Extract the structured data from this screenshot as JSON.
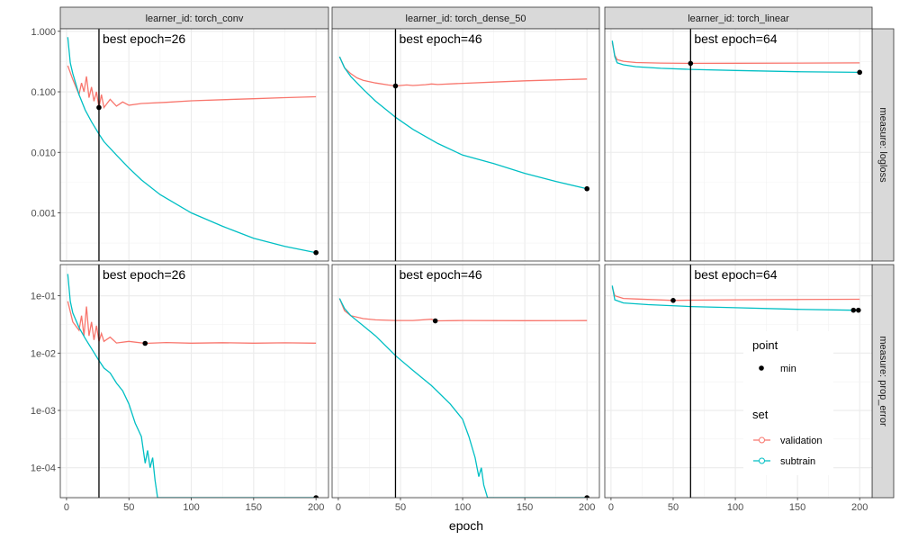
{
  "chart_data": {
    "type": "line",
    "xlabel": "epoch",
    "x_ticks": [
      0,
      50,
      100,
      150,
      200
    ],
    "x_range": [
      -5,
      210
    ],
    "columns": [
      {
        "learner_id": "torch_conv",
        "strip": "learner_id: torch_conv",
        "best_epoch": 26,
        "best_label": "best epoch=26"
      },
      {
        "learner_id": "torch_dense_50",
        "strip": "learner_id: torch_dense_50",
        "best_epoch": 46,
        "best_label": "best epoch=46"
      },
      {
        "learner_id": "torch_linear",
        "strip": "learner_id: torch_linear",
        "best_epoch": 64,
        "best_label": "best epoch=64"
      }
    ],
    "rows": [
      {
        "measure": "logloss",
        "strip": "measure: logloss",
        "scale": "log10",
        "ylim": [
          0.00016,
          1.1
        ],
        "ticks": [
          0.001,
          0.01,
          0.1,
          1
        ],
        "tick_labels": [
          "0.001",
          "0.010",
          "0.100",
          "1.000"
        ]
      },
      {
        "measure": "prop_error",
        "strip": "measure: prop_error",
        "scale": "log10",
        "ylim": [
          3e-05,
          0.35
        ],
        "ticks": [
          0.0001,
          0.001,
          0.01,
          0.1
        ],
        "tick_labels": [
          "1e-04",
          "1e-03",
          "1e-02",
          "1e-01"
        ]
      }
    ],
    "panels": [
      {
        "row": "logloss",
        "column": "torch_conv",
        "series": [
          {
            "set": "validation",
            "points": [
              [
                1,
                0.27
              ],
              [
                5,
                0.16
              ],
              [
                10,
                0.09
              ],
              [
                12,
                0.14
              ],
              [
                14,
                0.1
              ],
              [
                16,
                0.18
              ],
              [
                18,
                0.08
              ],
              [
                20,
                0.12
              ],
              [
                22,
                0.07
              ],
              [
                24,
                0.1
              ],
              [
                26,
                0.055
              ],
              [
                28,
                0.09
              ],
              [
                30,
                0.055
              ],
              [
                35,
                0.075
              ],
              [
                40,
                0.058
              ],
              [
                45,
                0.068
              ],
              [
                50,
                0.06
              ],
              [
                60,
                0.064
              ],
              [
                80,
                0.067
              ],
              [
                100,
                0.071
              ],
              [
                125,
                0.074
              ],
              [
                150,
                0.077
              ],
              [
                175,
                0.08
              ],
              [
                200,
                0.083
              ]
            ]
          },
          {
            "set": "subtrain",
            "points": [
              [
                1,
                0.8
              ],
              [
                3,
                0.3
              ],
              [
                5,
                0.2
              ],
              [
                10,
                0.09
              ],
              [
                15,
                0.05
              ],
              [
                20,
                0.032
              ],
              [
                26,
                0.02
              ],
              [
                30,
                0.015
              ],
              [
                40,
                0.009
              ],
              [
                50,
                0.0055
              ],
              [
                60,
                0.0035
              ],
              [
                75,
                0.002
              ],
              [
                100,
                0.001
              ],
              [
                125,
                0.0006
              ],
              [
                150,
                0.00038
              ],
              [
                175,
                0.00028
              ],
              [
                200,
                0.00022
              ]
            ]
          }
        ],
        "min_points": [
          [
            26,
            0.055
          ],
          [
            200,
            0.00022
          ]
        ]
      },
      {
        "row": "logloss",
        "column": "torch_dense_50",
        "series": [
          {
            "set": "validation",
            "points": [
              [
                1,
                0.38
              ],
              [
                5,
                0.25
              ],
              [
                10,
                0.2
              ],
              [
                15,
                0.17
              ],
              [
                20,
                0.155
              ],
              [
                30,
                0.14
              ],
              [
                40,
                0.13
              ],
              [
                46,
                0.125
              ],
              [
                55,
                0.13
              ],
              [
                60,
                0.127
              ],
              [
                70,
                0.131
              ],
              [
                75,
                0.135
              ],
              [
                80,
                0.132
              ],
              [
                100,
                0.138
              ],
              [
                125,
                0.145
              ],
              [
                150,
                0.152
              ],
              [
                175,
                0.157
              ],
              [
                200,
                0.163
              ]
            ]
          },
          {
            "set": "subtrain",
            "points": [
              [
                1,
                0.38
              ],
              [
                5,
                0.25
              ],
              [
                10,
                0.18
              ],
              [
                20,
                0.11
              ],
              [
                30,
                0.07
              ],
              [
                46,
                0.038
              ],
              [
                60,
                0.024
              ],
              [
                80,
                0.014
              ],
              [
                100,
                0.009
              ],
              [
                125,
                0.0065
              ],
              [
                150,
                0.0045
              ],
              [
                175,
                0.0033
              ],
              [
                200,
                0.0025
              ]
            ]
          }
        ],
        "min_points": [
          [
            46,
            0.125
          ],
          [
            200,
            0.0025
          ]
        ]
      },
      {
        "row": "logloss",
        "column": "torch_linear",
        "series": [
          {
            "set": "validation",
            "points": [
              [
                1,
                0.65
              ],
              [
                3,
                0.4
              ],
              [
                5,
                0.34
              ],
              [
                10,
                0.32
              ],
              [
                20,
                0.305
              ],
              [
                40,
                0.298
              ],
              [
                64,
                0.295
              ],
              [
                100,
                0.296
              ],
              [
                150,
                0.298
              ],
              [
                200,
                0.3
              ]
            ]
          },
          {
            "set": "subtrain",
            "points": [
              [
                1,
                0.7
              ],
              [
                3,
                0.38
              ],
              [
                5,
                0.3
              ],
              [
                10,
                0.28
              ],
              [
                20,
                0.26
              ],
              [
                40,
                0.245
              ],
              [
                64,
                0.235
              ],
              [
                100,
                0.225
              ],
              [
                150,
                0.215
              ],
              [
                200,
                0.21
              ]
            ]
          }
        ],
        "min_points": [
          [
            64,
            0.295
          ],
          [
            200,
            0.21
          ]
        ]
      },
      {
        "row": "prop_error",
        "column": "torch_conv",
        "series": [
          {
            "set": "validation",
            "points": [
              [
                1,
                0.08
              ],
              [
                5,
                0.035
              ],
              [
                10,
                0.025
              ],
              [
                12,
                0.045
              ],
              [
                14,
                0.02
              ],
              [
                16,
                0.065
              ],
              [
                18,
                0.02
              ],
              [
                20,
                0.035
              ],
              [
                22,
                0.017
              ],
              [
                24,
                0.03
              ],
              [
                26,
                0.016
              ],
              [
                28,
                0.022
              ],
              [
                30,
                0.016
              ],
              [
                35,
                0.019
              ],
              [
                40,
                0.015
              ],
              [
                50,
                0.016
              ],
              [
                63,
                0.0148
              ],
              [
                80,
                0.0153
              ],
              [
                100,
                0.0149
              ],
              [
                125,
                0.0152
              ],
              [
                150,
                0.0149
              ],
              [
                175,
                0.0151
              ],
              [
                200,
                0.0149
              ]
            ]
          },
          {
            "set": "subtrain",
            "points": [
              [
                1,
                0.24
              ],
              [
                3,
                0.08
              ],
              [
                5,
                0.05
              ],
              [
                10,
                0.028
              ],
              [
                15,
                0.018
              ],
              [
                20,
                0.012
              ],
              [
                25,
                0.008
              ],
              [
                30,
                0.0055
              ],
              [
                35,
                0.0045
              ],
              [
                40,
                0.003
              ],
              [
                45,
                0.0022
              ],
              [
                50,
                0.0013
              ],
              [
                55,
                0.0006
              ],
              [
                60,
                0.00035
              ],
              [
                63,
                0.00012
              ],
              [
                65,
                0.0002
              ],
              [
                67,
                0.0001
              ],
              [
                69,
                0.00015
              ],
              [
                71,
                6e-05
              ],
              [
                73,
                3e-05
              ],
              [
                200,
                3e-05
              ]
            ]
          }
        ],
        "min_points": [
          [
            63,
            0.0148
          ],
          [
            200,
            3e-05
          ]
        ]
      },
      {
        "row": "prop_error",
        "column": "torch_dense_50",
        "series": [
          {
            "set": "validation",
            "points": [
              [
                1,
                0.09
              ],
              [
                5,
                0.055
              ],
              [
                10,
                0.045
              ],
              [
                20,
                0.04
              ],
              [
                30,
                0.038
              ],
              [
                46,
                0.037
              ],
              [
                60,
                0.037
              ],
              [
                75,
                0.039
              ],
              [
                78,
                0.0365
              ],
              [
                100,
                0.037
              ],
              [
                150,
                0.0368
              ],
              [
                200,
                0.0369
              ]
            ]
          },
          {
            "set": "subtrain",
            "points": [
              [
                1,
                0.09
              ],
              [
                5,
                0.06
              ],
              [
                10,
                0.045
              ],
              [
                20,
                0.03
              ],
              [
                30,
                0.02
              ],
              [
                46,
                0.009
              ],
              [
                60,
                0.005
              ],
              [
                75,
                0.0027
              ],
              [
                90,
                0.0013
              ],
              [
                100,
                0.0007
              ],
              [
                105,
                0.00035
              ],
              [
                110,
                0.00015
              ],
              [
                113,
                7e-05
              ],
              [
                115,
                0.0001
              ],
              [
                117,
                5e-05
              ],
              [
                120,
                3e-05
              ],
              [
                200,
                3e-05
              ]
            ]
          }
        ],
        "min_points": [
          [
            78,
            0.0365
          ],
          [
            200,
            3e-05
          ]
        ]
      },
      {
        "row": "prop_error",
        "column": "torch_linear",
        "series": [
          {
            "set": "validation",
            "points": [
              [
                1,
                0.14
              ],
              [
                3,
                0.1
              ],
              [
                10,
                0.09
              ],
              [
                20,
                0.088
              ],
              [
                50,
                0.083
              ],
              [
                64,
                0.084
              ],
              [
                100,
                0.085
              ],
              [
                150,
                0.086
              ],
              [
                200,
                0.087
              ]
            ]
          },
          {
            "set": "subtrain",
            "points": [
              [
                1,
                0.15
              ],
              [
                3,
                0.085
              ],
              [
                10,
                0.075
              ],
              [
                30,
                0.07
              ],
              [
                64,
                0.065
              ],
              [
                100,
                0.062
              ],
              [
                150,
                0.058
              ],
              [
                195,
                0.056
              ],
              [
                200,
                0.056
              ]
            ]
          }
        ],
        "min_points": [
          [
            50,
            0.083
          ],
          [
            195,
            0.056
          ],
          [
            199,
            0.056
          ]
        ]
      }
    ],
    "legend": {
      "position": "bottom-right",
      "point_title": "point",
      "point_items": [
        {
          "label": "min",
          "color": "#000000"
        }
      ],
      "set_title": "set",
      "set_items": [
        {
          "label": "validation",
          "color": "#F8766D"
        },
        {
          "label": "subtrain",
          "color": "#00BFC4"
        }
      ]
    },
    "colors": {
      "validation": "#F8766D",
      "subtrain": "#00BFC4",
      "min": "#000000",
      "best_line": "#000000"
    },
    "grid": true
  }
}
